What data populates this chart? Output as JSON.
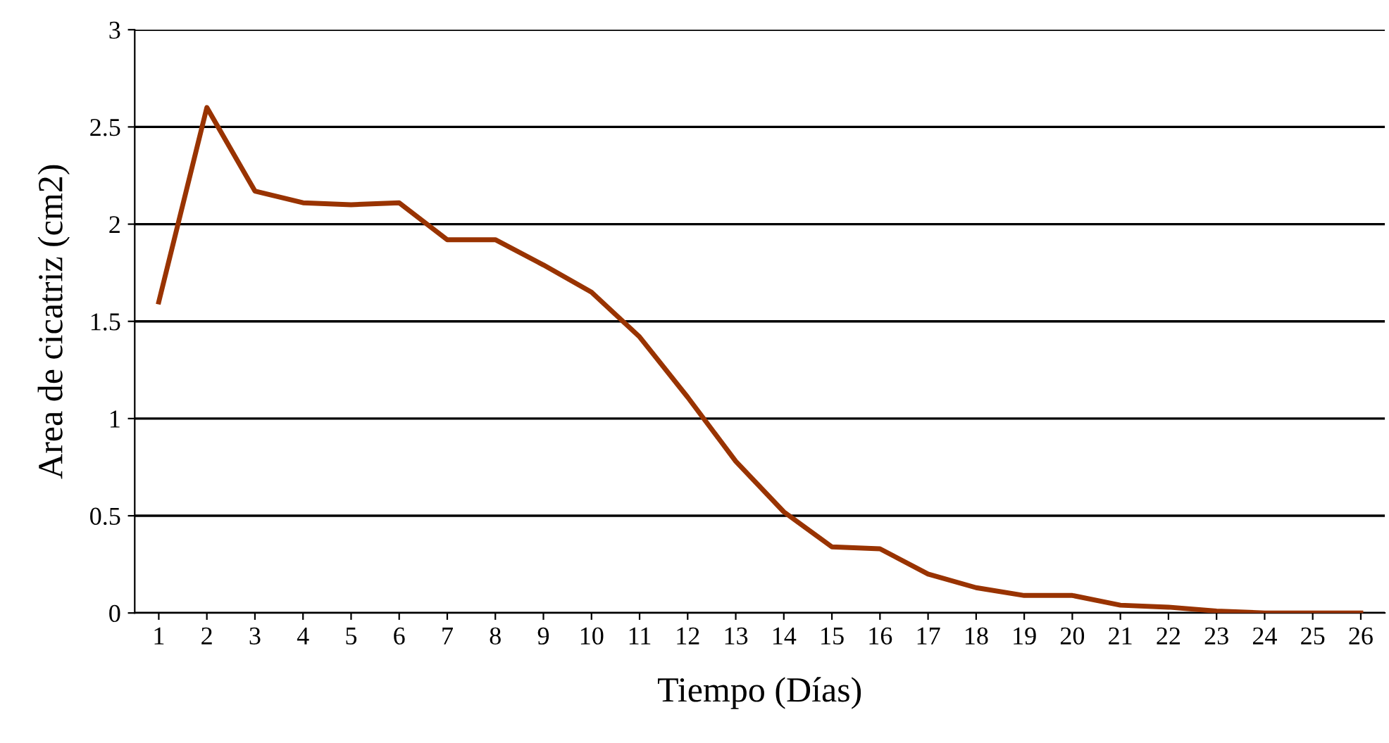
{
  "chart_data": {
    "type": "line",
    "xlabel": "Tiempo (Días)",
    "ylabel": "Area de cicatriz (cm2)",
    "categories": [
      "1",
      "2",
      "3",
      "4",
      "5",
      "6",
      "7",
      "8",
      "9",
      "10",
      "11",
      "12",
      "13",
      "14",
      "15",
      "16",
      "17",
      "18",
      "19",
      "20",
      "21",
      "22",
      "23",
      "24",
      "25",
      "26"
    ],
    "series": [
      {
        "color": "#993300",
        "values": [
          1.6,
          2.6,
          2.17,
          2.11,
          2.1,
          2.11,
          1.92,
          1.92,
          1.79,
          1.65,
          1.42,
          1.11,
          0.78,
          0.52,
          0.34,
          0.33,
          0.2,
          0.13,
          0.09,
          0.09,
          0.04,
          0.03,
          0.01,
          0,
          0,
          0
        ]
      }
    ],
    "ylim": [
      0,
      3
    ],
    "yticks": [
      0,
      0.5,
      1,
      1.5,
      2,
      2.5,
      3
    ],
    "grid": "y",
    "legend": false,
    "marker": "none",
    "line_style": "solid"
  }
}
